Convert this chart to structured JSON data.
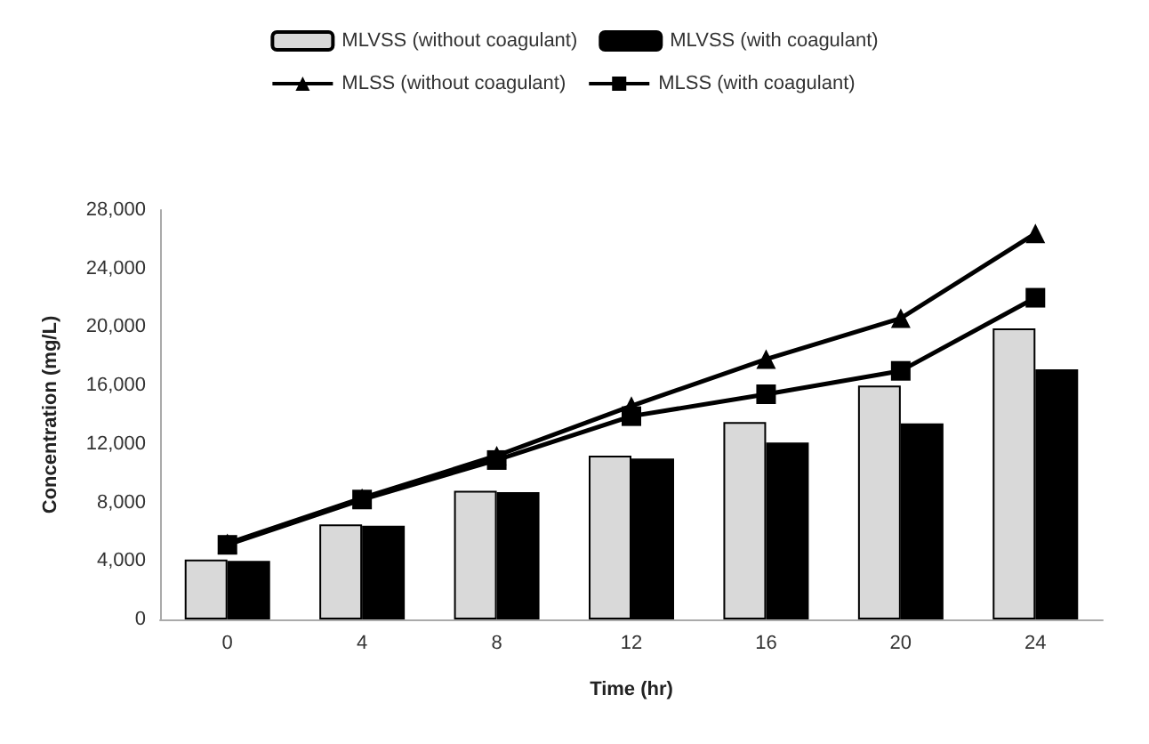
{
  "chart_data": {
    "type": "bar",
    "xlabel": "Time (hr)",
    "ylabel": "Concentration (mg/L)",
    "categories": [
      "0",
      "4",
      "8",
      "12",
      "16",
      "20",
      "24"
    ],
    "series": [
      {
        "name": "MLVSS (without coagulant)",
        "color": "#d9d9d9",
        "values": [
          4100,
          6500,
          8800,
          11200,
          13500,
          16000,
          19900
        ]
      },
      {
        "name": "MLVSS (with coagulant)",
        "color": "#000000",
        "values": [
          4000,
          6400,
          8700,
          11000,
          12100,
          13400,
          17100
        ]
      },
      {
        "name": "MLSS (without coagulant)",
        "type": "line",
        "color": "#000000",
        "marker": "triangle",
        "values": [
          5200,
          8300,
          11200,
          14600,
          17800,
          20600,
          26400
        ]
      },
      {
        "name": "MLSS (with coagulant)",
        "type": "line",
        "color": "#000000",
        "marker": "square",
        "values": [
          5100,
          8200,
          10900,
          13900,
          15400,
          17000,
          22000
        ]
      }
    ],
    "ylim": [
      0,
      28000
    ],
    "yticks": [
      0,
      {
        "value": 4000,
        "label": "4,000"
      },
      {
        "value": 8000,
        "label": "8,000"
      },
      {
        "value": 12000,
        "label": "12,000"
      },
      {
        "value": 16000,
        "label": "16,000"
      },
      {
        "value": 20000,
        "label": "20,000"
      },
      {
        "value": 24000,
        "label": "24,000"
      },
      {
        "value": 28000,
        "label": "28,000"
      }
    ],
    "grid": false,
    "legend": "top"
  }
}
